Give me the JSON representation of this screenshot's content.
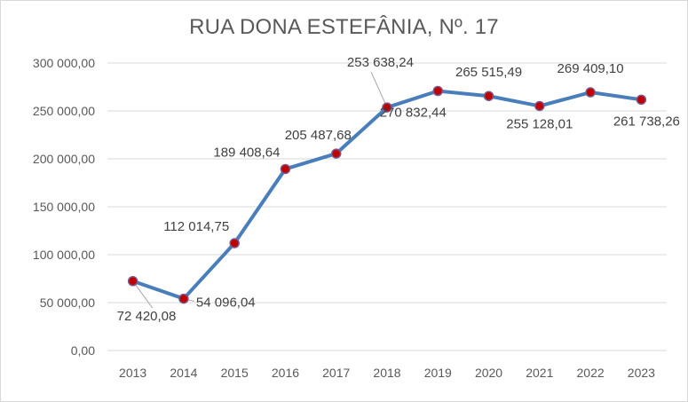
{
  "chart_data": {
    "type": "line",
    "title": "RUA DONA ESTEFÂNIA, Nº. 17",
    "categories": [
      "2013",
      "2014",
      "2015",
      "2016",
      "2017",
      "2018",
      "2019",
      "2020",
      "2021",
      "2022",
      "2023"
    ],
    "values": [
      72420.08,
      54096.04,
      112014.75,
      189408.64,
      205487.68,
      253638.24,
      270832.44,
      265515.49,
      255128.01,
      269409.1,
      261738.26
    ],
    "data_labels": [
      "72 420,08",
      "54 096,04",
      "112 014,75",
      "189 408,64",
      "205 487,68",
      "253 638,24",
      "270 832,44",
      "265 515,49",
      "255 128,01",
      "269 409,10",
      "261 738,26"
    ],
    "y_ticks": [
      "0,00",
      "50 000,00",
      "100 000,00",
      "150 000,00",
      "200 000,00",
      "250 000,00",
      "300 000,00"
    ],
    "ylim": [
      0,
      300000
    ],
    "grid": true,
    "legend": "none",
    "colors": {
      "line": "#4a7ebb",
      "marker": "#c00000",
      "grid": "#d9d9d9",
      "text": "#595959"
    }
  }
}
